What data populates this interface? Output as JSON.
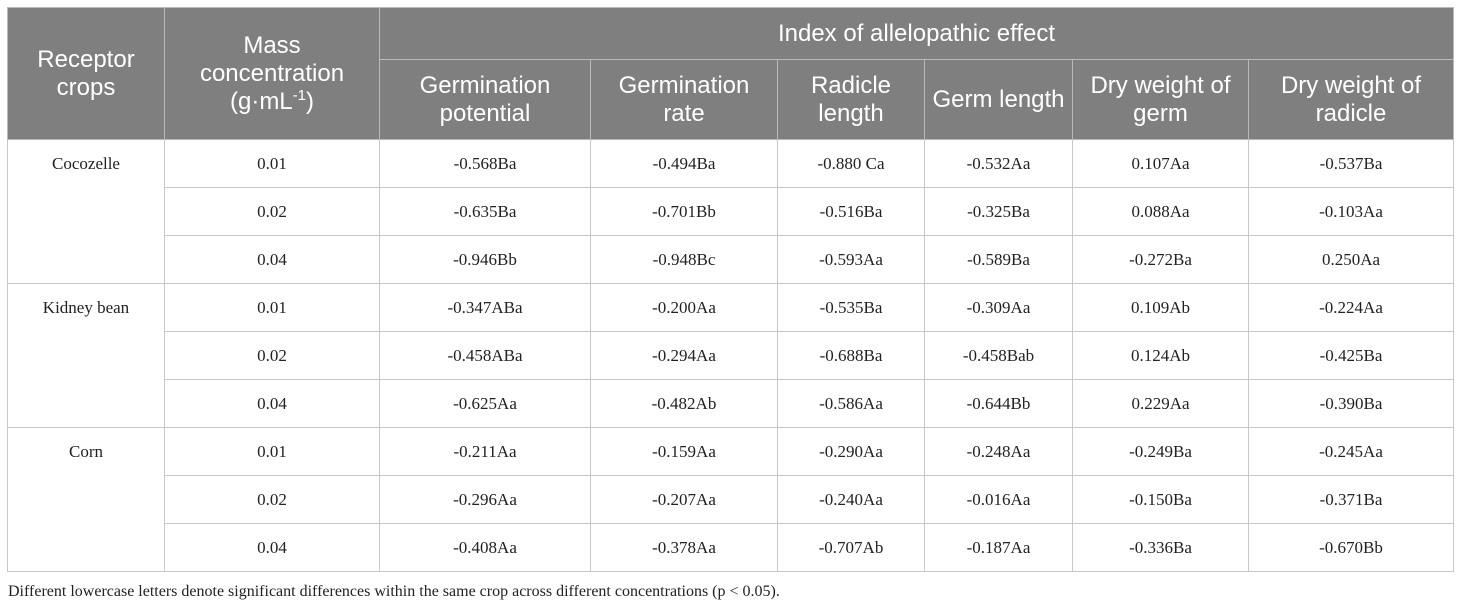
{
  "header": {
    "receptor_crops": "Receptor crops",
    "mass_concentration": "Mass concentration",
    "unit_prefix": "(g·mL",
    "unit_sup": "-1",
    "unit_suffix": ")",
    "index_group": "Index of allelopathic effect",
    "columns": [
      "Germination potential",
      "Germination rate",
      "Radicle length",
      "Germ length",
      "Dry weight of germ",
      "Dry weight of radicle"
    ]
  },
  "groups": [
    {
      "crop": "Cocozelle",
      "rows": [
        {
          "conc": "0.01",
          "values": [
            "-0.568Ba",
            "-0.494Ba",
            "-0.880 Ca",
            "-0.532Aa",
            "0.107Aa",
            "-0.537Ba"
          ]
        },
        {
          "conc": "0.02",
          "values": [
            "-0.635Ba",
            "-0.701Bb",
            "-0.516Ba",
            "-0.325Ba",
            "0.088Aa",
            "-0.103Aa"
          ]
        },
        {
          "conc": "0.04",
          "values": [
            "-0.946Bb",
            "-0.948Bc",
            "-0.593Aa",
            "-0.589Ba",
            "-0.272Ba",
            "0.250Aa"
          ]
        }
      ]
    },
    {
      "crop": "Kidney bean",
      "rows": [
        {
          "conc": "0.01",
          "values": [
            "-0.347ABa",
            "-0.200Aa",
            "-0.535Ba",
            "-0.309Aa",
            "0.109Ab",
            "-0.224Aa"
          ]
        },
        {
          "conc": "0.02",
          "values": [
            "-0.458ABa",
            "-0.294Aa",
            "-0.688Ba",
            "-0.458Bab",
            "0.124Ab",
            "-0.425Ba"
          ]
        },
        {
          "conc": "0.04",
          "values": [
            "-0.625Aa",
            "-0.482Ab",
            "-0.586Aa",
            "-0.644Bb",
            "0.229Aa",
            "-0.390Ba"
          ]
        }
      ]
    },
    {
      "crop": "Corn",
      "rows": [
        {
          "conc": "0.01",
          "values": [
            "-0.211Aa",
            "-0.159Aa",
            "-0.290Aa",
            "-0.248Aa",
            "-0.249Ba",
            "-0.245Aa"
          ]
        },
        {
          "conc": "0.02",
          "values": [
            "-0.296Aa",
            "-0.207Aa",
            "-0.240Aa",
            "-0.016Aa",
            "-0.150Ba",
            "-0.371Ba"
          ]
        },
        {
          "conc": "0.04",
          "values": [
            "-0.408Aa",
            "-0.378Aa",
            "-0.707Ab",
            "-0.187Aa",
            "-0.336Ba",
            "-0.670Bb"
          ]
        }
      ]
    }
  ],
  "footnote": "Different lowercase letters denote significant differences within the same crop across different concentrations (p < 0.05)."
}
